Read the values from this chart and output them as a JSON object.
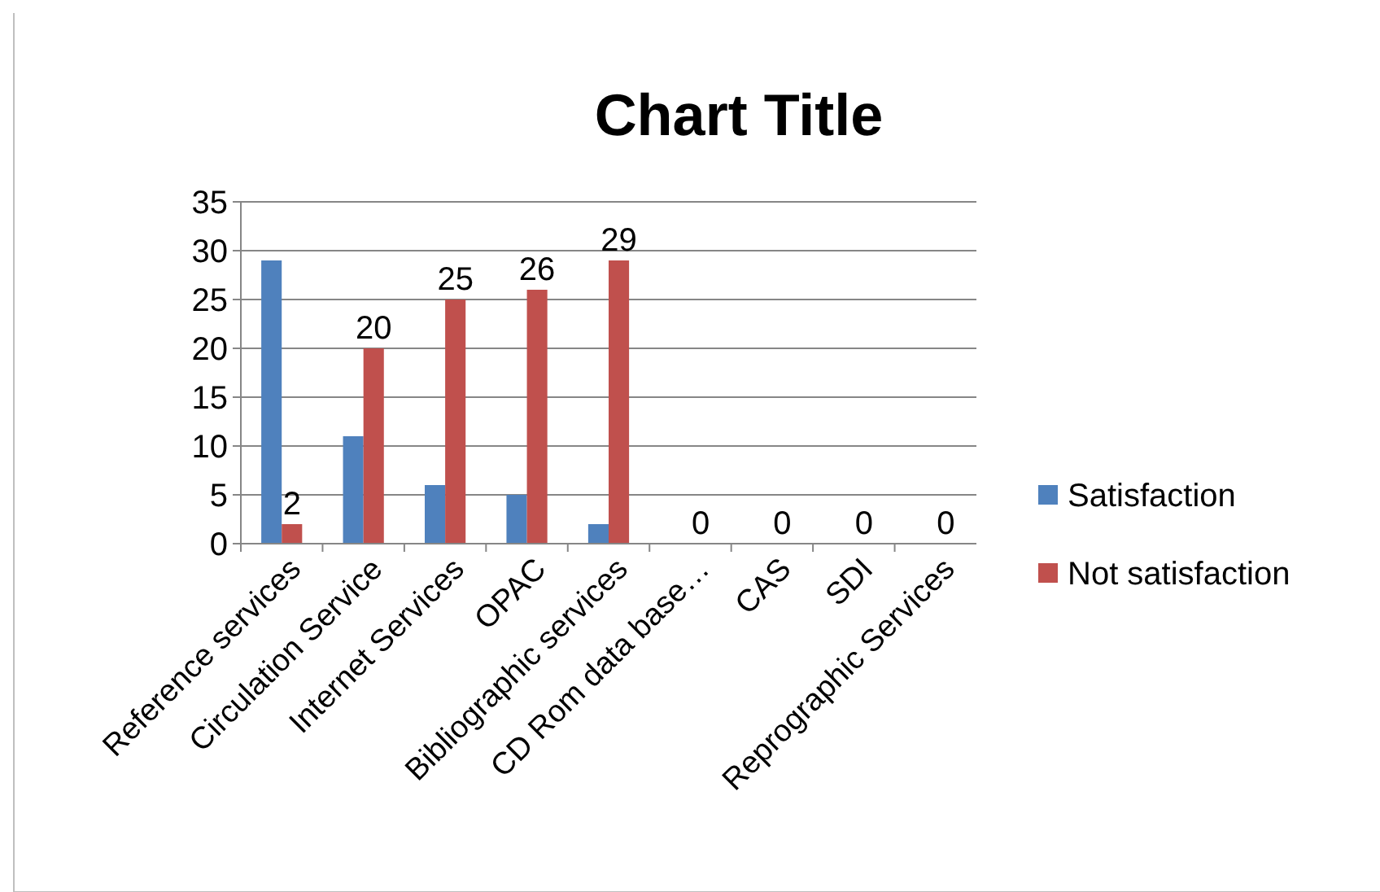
{
  "chart_data": {
    "type": "bar",
    "title": "Chart Title",
    "categories": [
      "Reference services",
      "Circulation Service",
      "Internet Services",
      "OPAC",
      "Bibliographic services",
      "CD Rom data base…",
      "CAS",
      "SDI",
      "Reprographic Services"
    ],
    "series": [
      {
        "name": "Satisfaction",
        "color": "#4f81bd",
        "values": [
          29,
          11,
          6,
          5,
          2,
          0,
          0,
          0,
          0
        ]
      },
      {
        "name": "Not satisfaction",
        "color": "#c0504d",
        "values": [
          2,
          20,
          25,
          26,
          29,
          0,
          0,
          0,
          0
        ],
        "value_labels": [
          "2",
          "20",
          "25",
          "26",
          "29",
          "0",
          "0",
          "0",
          "0"
        ]
      }
    ],
    "ylim": [
      0,
      35
    ],
    "yticks": [
      0,
      5,
      10,
      15,
      20,
      25,
      30,
      35
    ],
    "grid": "y",
    "legend": "right"
  }
}
